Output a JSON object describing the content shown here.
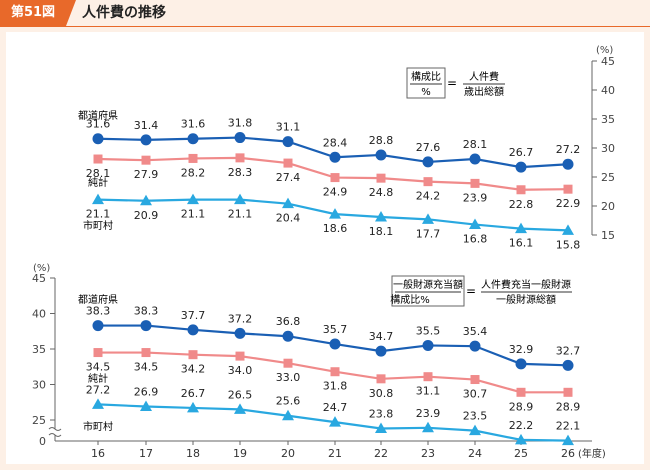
{
  "header": {
    "figure_label": "第51図",
    "title": "人件費の推移"
  },
  "chart_data": [
    {
      "type": "line",
      "unit_label": "(%)",
      "ylim": [
        15,
        45
      ],
      "yticks": [
        "15",
        "20",
        "25",
        "30",
        "35",
        "40",
        "45"
      ],
      "x": [
        "16",
        "17",
        "18",
        "19",
        "20",
        "21",
        "22",
        "23",
        "24",
        "25",
        "26"
      ],
      "formula": {
        "numerator": "構成比",
        "denominator": "%",
        "equals": "=",
        "rhs_numerator": "人件費",
        "rhs_denominator": "歳出総額"
      },
      "series": [
        {
          "name": "都道府県",
          "color": "#1a5fb4",
          "marker": "circle",
          "values": [
            31.6,
            31.4,
            31.6,
            31.8,
            31.1,
            28.4,
            28.8,
            27.6,
            28.1,
            26.7,
            27.2
          ]
        },
        {
          "name": "純計",
          "color": "#f08a8a",
          "marker": "square",
          "values": [
            28.1,
            27.9,
            28.2,
            28.3,
            27.4,
            24.9,
            24.8,
            24.2,
            23.9,
            22.8,
            22.9
          ]
        },
        {
          "name": "市町村",
          "color": "#29a8e0",
          "marker": "triangle",
          "values": [
            21.1,
            20.9,
            21.1,
            21.1,
            20.4,
            18.6,
            18.1,
            17.7,
            16.8,
            16.1,
            15.8
          ]
        }
      ]
    },
    {
      "type": "line",
      "unit_label": "(%)",
      "ylim": [
        20,
        45
      ],
      "axis_break": true,
      "yticks": [
        "0",
        "25",
        "30",
        "35",
        "40",
        "45"
      ],
      "x": [
        "16",
        "17",
        "18",
        "19",
        "20",
        "21",
        "22",
        "23",
        "24",
        "25",
        "26"
      ],
      "x_unit": "(年度)",
      "formula": {
        "numerator": "一般財源充当額",
        "denominator": "構成比%",
        "equals": "=",
        "rhs_numerator": "人件費充当一般財源",
        "rhs_denominator": "一般財源総額"
      },
      "series": [
        {
          "name": "都道府県",
          "color": "#1a5fb4",
          "marker": "circle",
          "values": [
            38.3,
            38.3,
            37.7,
            37.2,
            36.8,
            35.7,
            34.7,
            35.5,
            35.4,
            32.9,
            32.7
          ]
        },
        {
          "name": "純計",
          "color": "#f08a8a",
          "marker": "square",
          "values": [
            34.5,
            34.5,
            34.2,
            34.0,
            33.0,
            31.8,
            30.8,
            31.1,
            30.7,
            28.9,
            28.9
          ]
        },
        {
          "name": "市町村",
          "color": "#29a8e0",
          "marker": "triangle",
          "values": [
            27.2,
            26.9,
            26.7,
            26.5,
            25.6,
            24.7,
            23.8,
            23.9,
            23.5,
            22.2,
            22.1
          ]
        }
      ]
    }
  ]
}
